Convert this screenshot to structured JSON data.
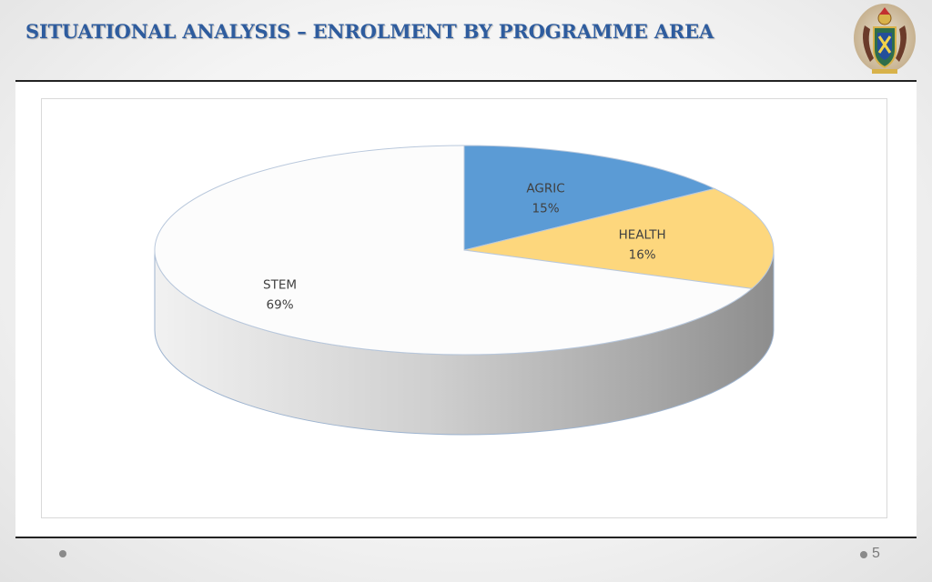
{
  "slide": {
    "title": "SITUATIONAL ANALYSIS – ENROLMENT BY PROGRAMME AREA",
    "page_number": "5",
    "logo_icon": "coat-of-arms-logo"
  },
  "colors": {
    "title": "#2e5c9e",
    "agric": "#5b9bd5",
    "health": "#fdd77d",
    "stem": "#fcfcfc"
  },
  "chart_data": {
    "type": "pie",
    "three_d": true,
    "title": "",
    "slices": [
      {
        "label": "AGRIC",
        "value": 15,
        "display": "15%",
        "color": "#5b9bd5"
      },
      {
        "label": "HEALTH",
        "value": 16,
        "display": "16%",
        "color": "#fdd77d"
      },
      {
        "label": "STEM",
        "value": 69,
        "display": "69%",
        "color": "#fcfcfc"
      }
    ],
    "legend": "none",
    "data_labels": "inside"
  }
}
